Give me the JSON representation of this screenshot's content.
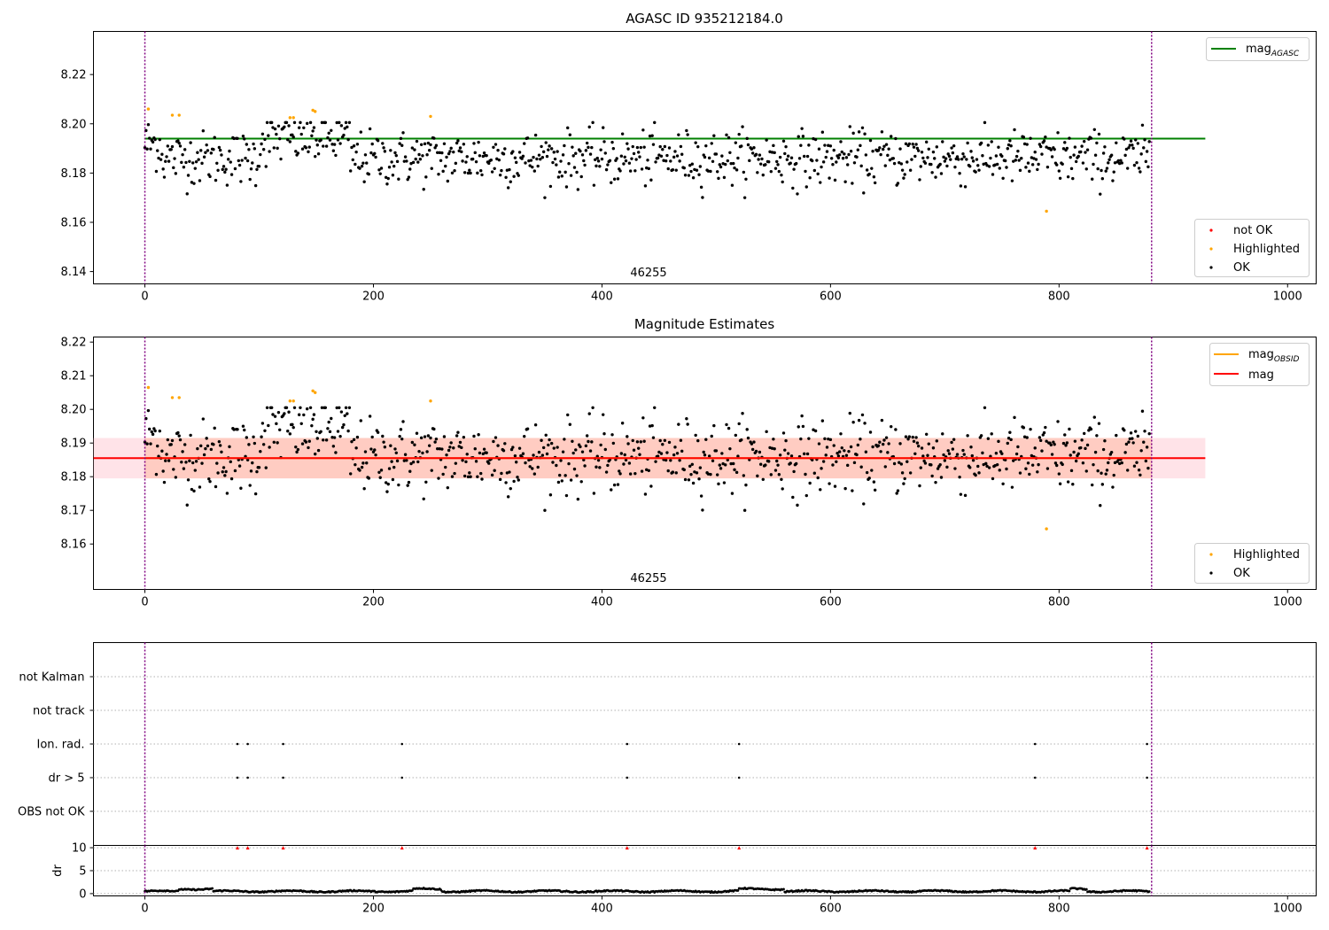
{
  "chart_data": [
    {
      "type": "scatter",
      "title": "AGASC ID 935212184.0",
      "annotation": "46255",
      "xlim": [
        -45,
        1025
      ],
      "ylim": [
        8.135,
        8.2375
      ],
      "xticks": [
        0,
        200,
        400,
        600,
        800,
        1000
      ],
      "yticks": [
        8.14,
        8.16,
        8.18,
        8.2,
        8.22
      ],
      "vlines": [
        0,
        881
      ],
      "hline": {
        "label": "mag",
        "label_sub": "AGASC",
        "value": 8.194,
        "x_range": [
          0,
          928
        ],
        "color": "#008000"
      },
      "legend_lines": [
        {
          "label": "mag",
          "sub": "AGASC",
          "color": "#008000"
        }
      ],
      "legend_points": [
        {
          "label": "not OK",
          "color": "#ff0000"
        },
        {
          "label": "Highlighted",
          "color": "#ffa500"
        },
        {
          "label": "OK",
          "color": "#000000"
        }
      ],
      "highlighted": [
        [
          3,
          8.206
        ],
        [
          24,
          8.2035
        ],
        [
          30,
          8.2035
        ],
        [
          127,
          8.2025
        ],
        [
          130,
          8.2025
        ],
        [
          147,
          8.2055
        ],
        [
          149,
          8.205
        ],
        [
          250,
          8.203
        ],
        [
          789,
          8.1645
        ]
      ],
      "ok_series": {
        "n": 880,
        "x_start": 0,
        "x_step": 1,
        "mean": 8.186,
        "scatter": 0.0055,
        "min": 8.17,
        "max": 8.2005
      }
    },
    {
      "type": "scatter",
      "title": "Magnitude Estimates",
      "annotation": "46255",
      "xlim": [
        -45,
        1025
      ],
      "ylim": [
        8.1465,
        8.2215
      ],
      "xticks": [
        0,
        200,
        400,
        600,
        800,
        1000
      ],
      "yticks": [
        8.16,
        8.17,
        8.18,
        8.19,
        8.2,
        8.21,
        8.22
      ],
      "vlines": [
        0,
        881
      ],
      "hline": {
        "label": "mag",
        "value": 8.1855,
        "x_range": [
          -45,
          928
        ],
        "color": "#ff0000"
      },
      "band": {
        "low": 8.1795,
        "high": 8.1915,
        "x_range": [
          -45,
          928
        ],
        "color": "#ffc0cb"
      },
      "obsid_line": {
        "label": "mag",
        "label_sub": "OBSID",
        "value": 8.1855,
        "x_range": [
          0,
          881
        ],
        "color": "#ffa500"
      },
      "legend_lines": [
        {
          "label": "mag",
          "sub": "OBSID",
          "color": "#ffa500"
        },
        {
          "label": "mag",
          "sub": "",
          "color": "#ff0000"
        }
      ],
      "legend_points": [
        {
          "label": "Highlighted",
          "color": "#ffa500"
        },
        {
          "label": "OK",
          "color": "#000000"
        }
      ],
      "highlighted": [
        [
          3,
          8.2065
        ],
        [
          24,
          8.2035
        ],
        [
          30,
          8.2035
        ],
        [
          127,
          8.2025
        ],
        [
          130,
          8.2025
        ],
        [
          147,
          8.2055
        ],
        [
          149,
          8.205
        ],
        [
          250,
          8.2025
        ],
        [
          789,
          8.1645
        ]
      ]
    },
    {
      "type": "scatter",
      "flag_categories": [
        "not Kalman",
        "not track",
        "Ion. rad.",
        "dr > 5",
        "OBS not OK"
      ],
      "flag_points": {
        "Ion. rad.": [
          81,
          90,
          121,
          225,
          422,
          520,
          779,
          877
        ],
        "dr > 5": [
          81,
          90,
          121,
          225,
          422,
          520,
          779,
          877
        ]
      },
      "xlim": [
        -45,
        1025
      ],
      "xticks": [
        0,
        200,
        400,
        600,
        800,
        1000
      ],
      "vlines": [
        0,
        881
      ]
    },
    {
      "type": "scatter",
      "ylabel": "dr",
      "ylim": [
        -0.5,
        10.5
      ],
      "yticks": [
        0,
        5,
        10
      ],
      "xlim": [
        -45,
        1025
      ],
      "xticks": [
        0,
        200,
        400,
        600,
        800,
        1000
      ],
      "vlines": [
        0,
        881
      ],
      "outlier_marks": {
        "value": 10,
        "x": [
          81,
          90,
          121,
          225,
          422,
          520,
          779,
          877
        ],
        "color": "#ff0000"
      },
      "dr_series": {
        "n": 880,
        "typical": 0.5,
        "max": 1.3
      }
    }
  ]
}
